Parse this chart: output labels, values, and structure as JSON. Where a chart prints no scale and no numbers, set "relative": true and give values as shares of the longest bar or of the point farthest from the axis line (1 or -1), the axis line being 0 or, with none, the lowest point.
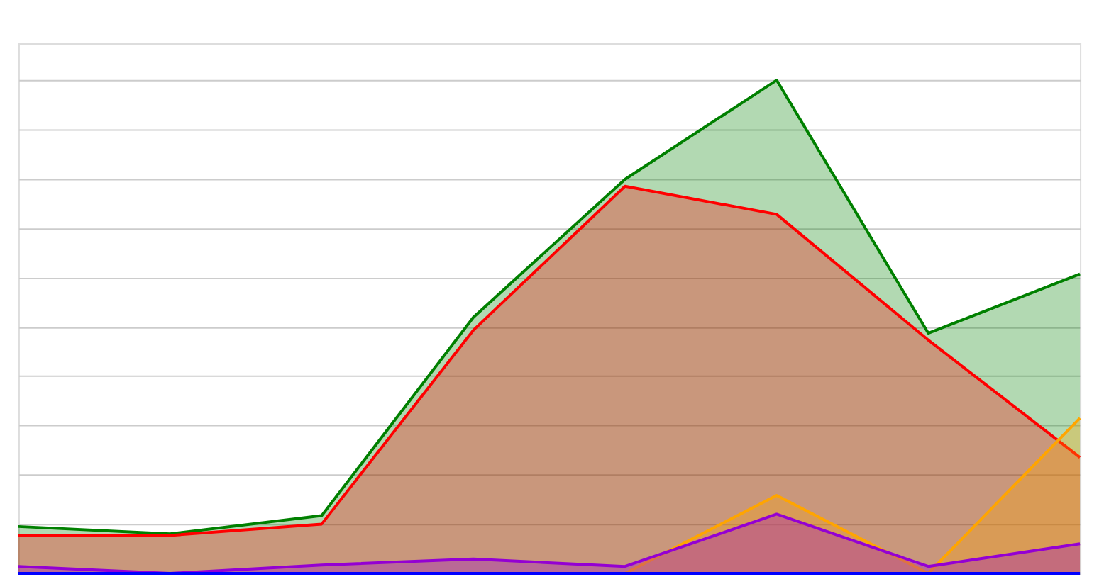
{
  "chart_data": {
    "type": "area",
    "relative": true,
    "grid": "y",
    "categories": [
      null,
      null,
      null,
      null,
      null,
      null,
      null,
      null
    ],
    "series": [
      {
        "color": "#008000",
        "values": [
          0.095,
          0.08,
          0.117,
          0.519,
          0.799,
          1,
          0.487,
          0.607
        ]
      },
      {
        "color": "#ff0000",
        "values": [
          0.077,
          0.077,
          0.1,
          0.493,
          0.785,
          0.728,
          0.473,
          0.235
        ]
      },
      {
        "color": "#ffa500",
        "values": [
          0,
          0,
          0,
          0,
          0,
          0.158,
          0,
          0.315
        ]
      },
      {
        "color": "#9400d3",
        "values": [
          0.014,
          0,
          0.017,
          0.029,
          0.014,
          0.12,
          0.014,
          0.06
        ]
      },
      {
        "type": "line",
        "color": "#0000ff",
        "values": [
          0,
          0,
          0,
          0,
          0,
          0,
          0,
          0
        ]
      }
    ]
  }
}
